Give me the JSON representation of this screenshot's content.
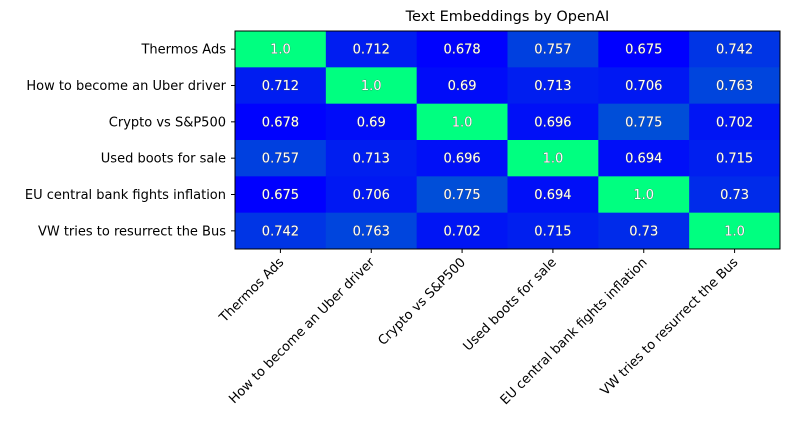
{
  "chart_data": {
    "type": "heatmap",
    "title": "Text Embeddings by OpenAI",
    "xlabel": "",
    "ylabel": "",
    "row_labels": [
      "Thermos Ads",
      "How to become an Uber driver",
      "Crypto vs S&P500",
      "Used boots for sale",
      "EU central bank fights inflation",
      "VW tries to resurrect the Bus"
    ],
    "col_labels": [
      "Thermos Ads",
      "How to become an Uber driver",
      "Crypto vs S&P500",
      "Used boots for sale",
      "EU central bank fights inflation",
      "VW tries to resurrect the Bus"
    ],
    "values": [
      [
        1.0,
        0.712,
        0.678,
        0.757,
        0.675,
        0.742
      ],
      [
        0.712,
        1.0,
        0.69,
        0.713,
        0.706,
        0.763
      ],
      [
        0.678,
        0.69,
        1.0,
        0.696,
        0.775,
        0.702
      ],
      [
        0.757,
        0.713,
        0.696,
        1.0,
        0.694,
        0.715
      ],
      [
        0.675,
        0.706,
        0.775,
        0.694,
        1.0,
        0.73
      ],
      [
        0.742,
        0.763,
        0.702,
        0.715,
        0.73,
        1.0
      ]
    ],
    "value_labels": [
      [
        "1.0",
        "0.712",
        "0.678",
        "0.757",
        "0.675",
        "0.742"
      ],
      [
        "0.712",
        "1.0",
        "0.69",
        "0.713",
        "0.706",
        "0.763"
      ],
      [
        "0.678",
        "0.69",
        "1.0",
        "0.696",
        "0.775",
        "0.702"
      ],
      [
        "0.757",
        "0.713",
        "0.696",
        "1.0",
        "0.694",
        "0.715"
      ],
      [
        "0.675",
        "0.706",
        "0.775",
        "0.694",
        "1.0",
        "0.73"
      ],
      [
        "0.742",
        "0.763",
        "0.702",
        "0.715",
        "0.73",
        "1.0"
      ]
    ],
    "colormap": "winter",
    "color_low": "#0000ff",
    "color_high": "#00ff80",
    "value_range": [
      0.675,
      1.0
    ],
    "grid": false,
    "legend": "none"
  }
}
